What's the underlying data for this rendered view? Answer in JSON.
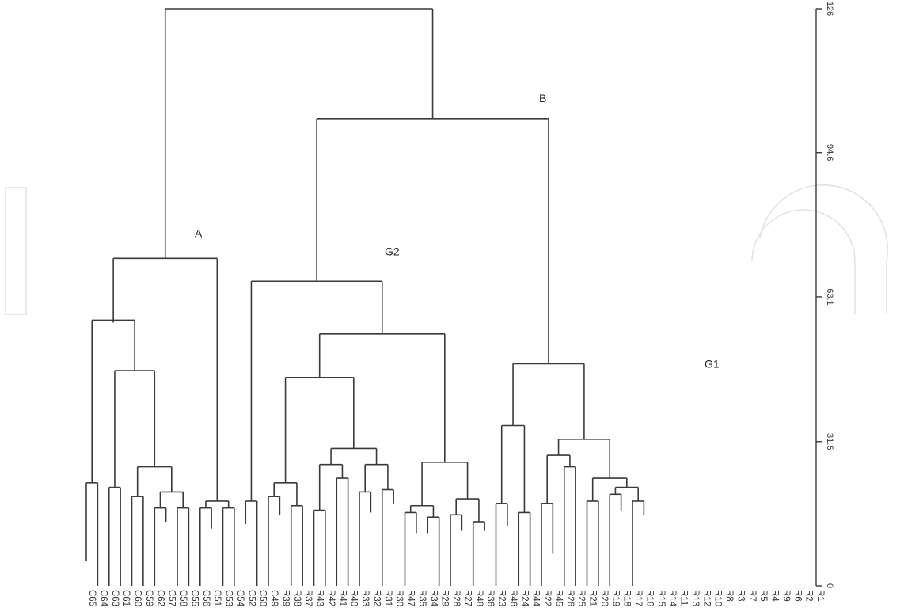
{
  "chart_data": {
    "type": "dendrogram",
    "leaves": [
      "C65",
      "C64",
      "C63",
      "C61",
      "C60",
      "C59",
      "C62",
      "C57",
      "C58",
      "C55",
      "C56",
      "C51",
      "C53",
      "C54",
      "C52",
      "C50",
      "C49",
      "R39",
      "R38",
      "R37",
      "R43",
      "R42",
      "R41",
      "R40",
      "R33",
      "R32",
      "R31",
      "R30",
      "R47",
      "R35",
      "R34",
      "R29",
      "R28",
      "R27",
      "R48",
      "R36",
      "R23",
      "R46",
      "R24",
      "R44",
      "R22",
      "R45",
      "R26",
      "R25",
      "R21",
      "R20",
      "R19",
      "R18",
      "R17",
      "R16",
      "R15",
      "R14",
      "R11",
      "R13",
      "R12",
      "R10",
      "R8",
      "R3",
      "R7",
      "R5",
      "R4",
      "R9",
      "R6",
      "R2",
      "R1"
    ],
    "y_axis": {
      "ticks": [
        "0",
        "31.5",
        "63.1",
        "94.6",
        "126"
      ],
      "range": [
        0,
        126
      ],
      "label_rotation": "90"
    },
    "group_labels": [
      {
        "text": "A",
        "height": 77
      },
      {
        "text": "B",
        "height": 106.5
      },
      {
        "text": "G2",
        "height": 73
      },
      {
        "text": "G1",
        "height": 48.5
      }
    ],
    "root": {
      "h": 126,
      "c": [
        {
          "h": 71.5,
          "c": [
            {
              "h": 57.5,
              "c": [
                {
                  "h": 58,
                  "c": [
                    {
                      "h": 22.5,
                      "c": [
                        {
                          "l": 0,
                          "h": 5.5
                        },
                        {
                          "l": 1
                        }
                      ]
                    },
                    {
                      "h": 47,
                      "c": [
                        {
                          "h": 21.5,
                          "c": [
                            {
                              "l": 2
                            },
                            {
                              "l": 3
                            }
                          ]
                        },
                        {
                          "h": 26,
                          "c": [
                            {
                              "h": 19.5,
                              "c": [
                                {
                                  "l": 4
                                },
                                {
                                  "l": 5
                                }
                              ]
                            },
                            {
                              "h": 20.5,
                              "c": [
                                {
                                  "h": 17,
                                  "c": [
                                    {
                                      "l": 6
                                    },
                                    {
                                      "l": 7,
                                      "h": 14
                                    }
                                  ]
                                },
                                {
                                  "h": 17,
                                  "c": [
                                    {
                                      "l": 8
                                    },
                                    {
                                      "l": 9
                                    }
                                  ]
                                }
                              ]
                            }
                          ]
                        }
                      ]
                    }
                  ]
                }
              ]
            },
            {
              "h": 18.5,
              "c": [
                {
                  "h": 17,
                  "c": [
                    {
                      "l": 10
                    },
                    {
                      "l": 11,
                      "h": 12.5
                    }
                  ]
                },
                {
                  "h": 17,
                  "c": [
                    {
                      "l": 12
                    },
                    {
                      "l": 13
                    }
                  ]
                }
              ]
            }
          ]
        },
        {
          "h": 102,
          "c": [
            {
              "h": 66.5,
              "c": [
                {
                  "h": 18.5,
                  "c": [
                    {
                      "l": 14,
                      "h": 13.5
                    },
                    {
                      "l": 15
                    }
                  ]
                },
                {
                  "h": 55,
                  "c": [
                    {
                      "h": 45.5,
                      "c": [
                        {
                          "h": 22.5,
                          "c": [
                            {
                              "h": 19.5,
                              "c": [
                                {
                                  "l": 16
                                },
                                {
                                  "l": 17,
                                  "h": 15.5
                                }
                              ]
                            },
                            {
                              "h": 17.5,
                              "c": [
                                {
                                  "l": 18
                                },
                                {
                                  "l": 19
                                }
                              ]
                            }
                          ]
                        },
                        {
                          "h": 30,
                          "c": [
                            {
                              "h": 26.5,
                              "c": [
                                {
                                  "h": 16.5,
                                  "c": [
                                    {
                                      "l": 20
                                    },
                                    {
                                      "l": 21
                                    }
                                  ]
                                },
                                {
                                  "h": 23.5,
                                  "c": [
                                    {
                                      "l": 22
                                    },
                                    {
                                      "l": 23
                                    }
                                  ]
                                }
                              ]
                            },
                            {
                              "h": 26.5,
                              "c": [
                                {
                                  "h": 20.5,
                                  "c": [
                                    {
                                      "l": 24
                                    },
                                    {
                                      "l": 25,
                                      "h": 16
                                    }
                                  ]
                                },
                                {
                                  "h": 21,
                                  "c": [
                                    {
                                      "l": 26
                                    },
                                    {
                                      "l": 27,
                                      "h": 18
                                    }
                                  ]
                                }
                              ]
                            }
                          ]
                        }
                      ]
                    },
                    {
                      "h": 27,
                      "c": [
                        {
                          "h": 17.5,
                          "c": [
                            {
                              "h": 16,
                              "c": [
                                {
                                  "l": 28
                                },
                                {
                                  "l": 29,
                                  "h": 11.5
                                }
                              ]
                            },
                            {
                              "h": 15,
                              "c": [
                                {
                                  "l": 30,
                                  "h": 11.5
                                },
                                {
                                  "l": 31
                                }
                              ]
                            }
                          ]
                        },
                        {
                          "h": 19,
                          "c": [
                            {
                              "h": 15.5,
                              "c": [
                                {
                                  "l": 32
                                },
                                {
                                  "l": 33,
                                  "h": 12
                                }
                              ]
                            },
                            {
                              "h": 14,
                              "c": [
                                {
                                  "l": 34
                                },
                                {
                                  "l": 35,
                                  "h": 12
                                }
                              ]
                            }
                          ]
                        }
                      ]
                    }
                  ]
                }
              ]
            },
            {
              "h": 48.5,
              "c": [
                {
                  "h": 35,
                  "c": [
                    {
                      "h": 18,
                      "c": [
                        {
                          "l": 36
                        },
                        {
                          "l": 37,
                          "h": 13
                        }
                      ]
                    },
                    {
                      "h": 16,
                      "c": [
                        {
                          "l": 38
                        },
                        {
                          "l": 39
                        }
                      ]
                    }
                  ]
                },
                {
                  "h": 32,
                  "c": [
                    {
                      "h": 28.5,
                      "c": [
                        {
                          "h": 18,
                          "c": [
                            {
                              "l": 40
                            },
                            {
                              "l": 41,
                              "h": 7
                            }
                          ]
                        },
                        {
                          "h": 26,
                          "c": [
                            {
                              "l": 42
                            },
                            {
                              "l": 43
                            }
                          ]
                        }
                      ]
                    },
                    {
                      "h": 23.5,
                      "c": [
                        {
                          "h": 18.5,
                          "c": [
                            {
                              "l": 44
                            },
                            {
                              "l": 45
                            }
                          ]
                        },
                        {
                          "h": 21.5,
                          "c": [
                            {
                              "h": 20,
                              "c": [
                                {
                                  "l": 46
                                },
                                {
                                  "l": 47,
                                  "h": 16.5
                                }
                              ]
                            },
                            {
                              "h": 18.5,
                              "c": [
                                {
                                  "l": 48
                                },
                                {
                                  "l": 49,
                                  "h": 15.5
                                }
                              ]
                            }
                          ]
                        }
                      ]
                    }
                  ]
                }
              ]
            }
          ]
        }
      ]
    }
  }
}
